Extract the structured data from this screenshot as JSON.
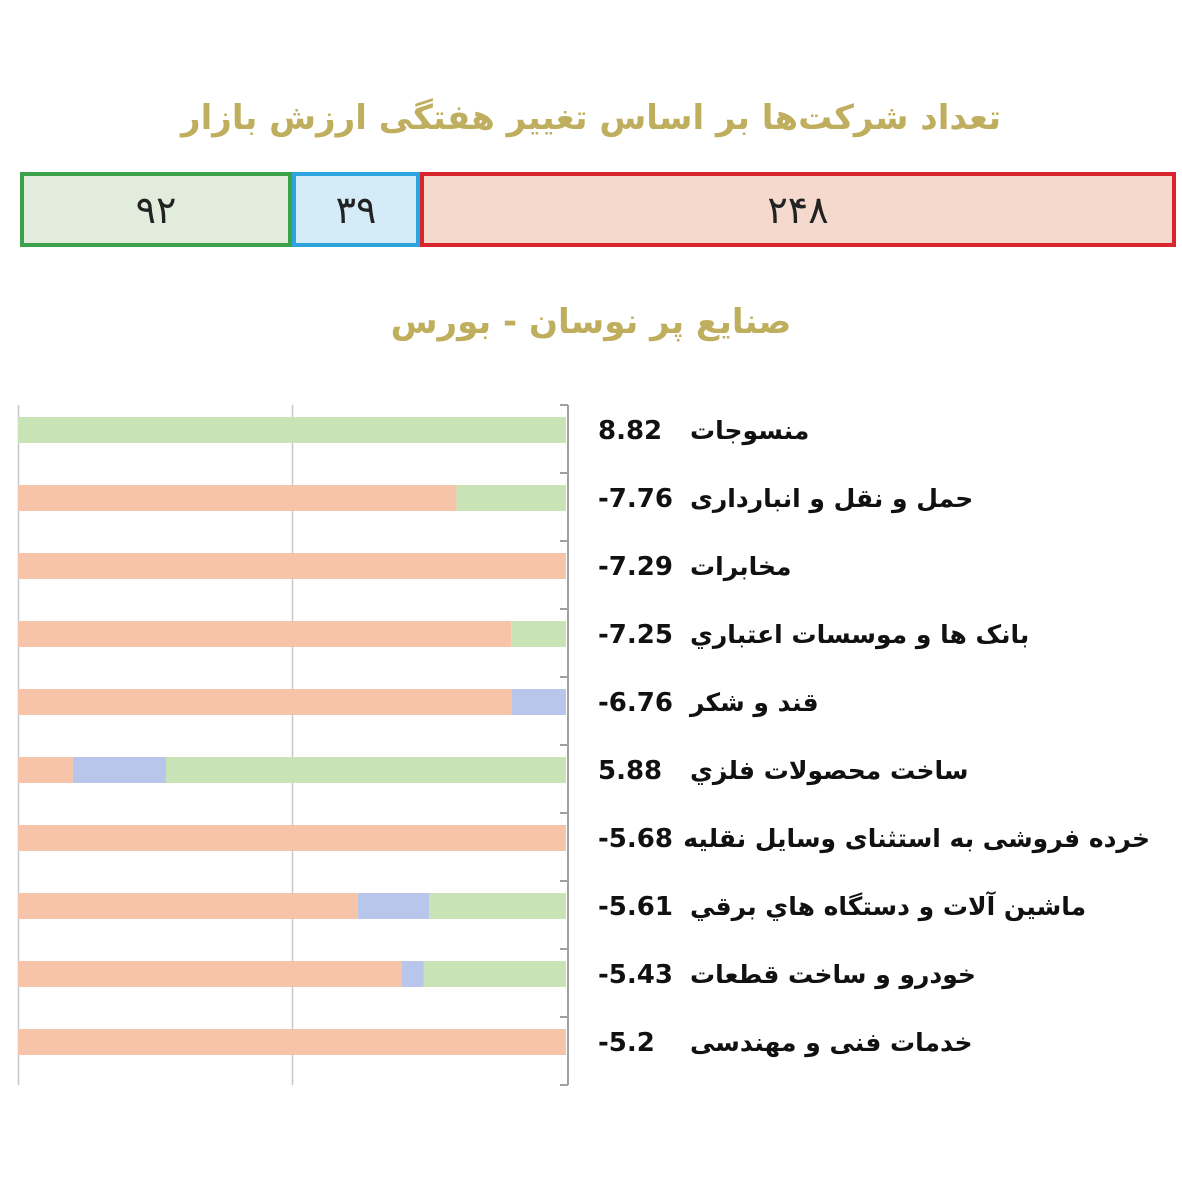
{
  "main_title": "تعداد شرکت‌ها بر اساس تغییر هفتگی ارزش بازار",
  "counts": {
    "positive": {
      "value": "۹۲",
      "color": "#3ca24a"
    },
    "neutral": {
      "value": "۳۹",
      "color": "#2ea4de"
    },
    "negative": {
      "value": "۲۴۸",
      "color": "#d7252b"
    }
  },
  "chart_title": "صنایع پر نوسان - بورس",
  "colors": {
    "negative": "#f6c4a8",
    "neutral": "#b7c6ea",
    "positive": "#c8e3b6",
    "axis": "#a0a0a0"
  },
  "chart_data": {
    "type": "bar",
    "orientation": "horizontal",
    "stacked": true,
    "title": "صنایع پر نوسان - بورس",
    "categories": [
      "منسوجات",
      "حمل و نقل و انبارداری",
      "مخابرات",
      "بانک ها و موسسات اعتباري",
      "قند و شکر",
      "ساخت محصولات فلزي",
      "خرده فروشی به استثنای وسایل نقلیه",
      "ماشین آلات و دستگاه هاي برقي",
      "خودرو و ساخت قطعات",
      "خدمات فنی و مهندسی"
    ],
    "value_labels": [
      "8.82",
      "-7.76",
      "-7.29",
      "-7.25",
      "-6.76",
      "5.88",
      "-5.68",
      "-5.61",
      "-5.43",
      "-5.2"
    ],
    "values": [
      8.82,
      -7.76,
      -7.29,
      -7.25,
      -6.76,
      5.88,
      -5.68,
      -5.61,
      -5.43,
      -5.2
    ],
    "series": [
      {
        "name": "",
        "key": "positive",
        "values": [
          100,
          20,
          0,
          10,
          0,
          73,
          0,
          25,
          26,
          0
        ]
      },
      {
        "name": "",
        "key": "neutral",
        "values": [
          0,
          0,
          0,
          0,
          10,
          17,
          0,
          13,
          4,
          0
        ]
      },
      {
        "name": "",
        "key": "negative",
        "values": [
          0,
          80,
          100,
          90,
          90,
          10,
          100,
          62,
          70,
          100
        ]
      }
    ],
    "xlim": [
      0,
      100
    ],
    "grid": true
  }
}
